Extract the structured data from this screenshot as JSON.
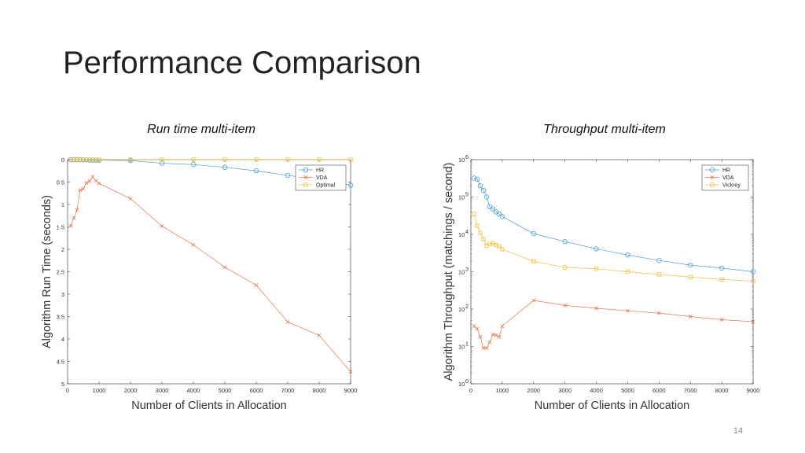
{
  "slide": {
    "title": "Performance Comparison",
    "page_number": "14"
  },
  "colors": {
    "series1": "#4d9fd1",
    "series2": "#e07a52",
    "series3": "#e8c14a",
    "axis": "#262626"
  },
  "chart_data": [
    {
      "type": "line",
      "caption": "Run time multi-item",
      "xlabel": "Number of Clients in Allocation",
      "ylabel": "Algorithm Run Time (seconds)",
      "xlim": [
        0,
        9000
      ],
      "ylim": [
        0,
        5
      ],
      "y_reversed": true,
      "x_ticks": [
        0,
        1000,
        2000,
        3000,
        4000,
        5000,
        6000,
        7000,
        8000,
        9000
      ],
      "x_tick_labels": [
        "0",
        "1000",
        "2000",
        "3000",
        "4000",
        "5000",
        "6000",
        "7000",
        "8000",
        "9000"
      ],
      "y_ticks": [
        0,
        0.5,
        1,
        1.5,
        2,
        2.5,
        3,
        3.5,
        4,
        4.5,
        5
      ],
      "y_tick_labels": [
        "0",
        "0.5",
        "1",
        "1.5",
        "2",
        "2.5",
        "3",
        "3.5",
        "4",
        "4.5",
        "5"
      ],
      "grid": false,
      "legend_position": "top-right",
      "series": [
        {
          "name": "HR",
          "color": "#4d9fd1",
          "marker": "circle",
          "x": [
            100,
            200,
            300,
            400,
            500,
            600,
            700,
            800,
            900,
            1000,
            2000,
            3000,
            4000,
            5000,
            6000,
            7000,
            8000,
            9000
          ],
          "y": [
            0.0,
            0.0,
            0.0,
            0.0,
            0.005,
            0.005,
            0.01,
            0.01,
            0.01,
            0.01,
            0.02,
            0.08,
            0.11,
            0.17,
            0.25,
            0.35,
            0.45,
            0.57
          ]
        },
        {
          "name": "VDA",
          "color": "#e07a52",
          "marker": "x",
          "x": [
            100,
            200,
            300,
            400,
            500,
            600,
            700,
            800,
            900,
            1000,
            2000,
            3000,
            4000,
            5000,
            6000,
            7000,
            8000,
            9000
          ],
          "y": [
            1.48,
            1.3,
            1.12,
            0.68,
            0.65,
            0.52,
            0.48,
            0.38,
            0.47,
            0.53,
            0.87,
            1.48,
            1.9,
            2.4,
            2.8,
            3.62,
            3.92,
            4.73
          ]
        },
        {
          "name": "Optimal",
          "color": "#e8c14a",
          "marker": "square",
          "x": [
            100,
            200,
            300,
            400,
            500,
            600,
            700,
            800,
            900,
            1000,
            2000,
            3000,
            4000,
            5000,
            6000,
            7000,
            8000,
            9000
          ],
          "y": [
            0.0,
            0.0,
            0.0,
            0.0,
            0.0,
            0.0,
            0.0,
            0.0,
            0.0,
            0.0,
            0.0,
            0.0,
            0.0,
            0.0,
            0.0,
            0.0,
            0.0,
            0.0
          ]
        }
      ]
    },
    {
      "type": "line",
      "caption": "Throughput multi-item",
      "xlabel": "Number of Clients in Allocation",
      "ylabel": "Algorithm Throughput (matchings / second)",
      "xlim": [
        0,
        9000
      ],
      "ylim": [
        1,
        1000000
      ],
      "y_scale": "log",
      "x_ticks": [
        0,
        1000,
        2000,
        3000,
        4000,
        5000,
        6000,
        7000,
        8000,
        9000
      ],
      "x_tick_labels": [
        "0",
        "1000",
        "2000",
        "3000",
        "4000",
        "5000",
        "6000",
        "7000",
        "8000",
        "9000"
      ],
      "y_ticks": [
        1,
        10,
        100,
        1000,
        10000,
        100000,
        1000000
      ],
      "y_tick_labels": [
        {
          "base": "10",
          "exp": "0"
        },
        {
          "base": "10",
          "exp": "1"
        },
        {
          "base": "10",
          "exp": "2"
        },
        {
          "base": "10",
          "exp": "3"
        },
        {
          "base": "10",
          "exp": "4"
        },
        {
          "base": "10",
          "exp": "5"
        },
        {
          "base": "10",
          "exp": "6"
        }
      ],
      "grid": false,
      "legend_position": "top-right",
      "series": [
        {
          "name": "HR",
          "color": "#4d9fd1",
          "marker": "circle",
          "x": [
            100,
            200,
            300,
            400,
            500,
            600,
            700,
            800,
            900,
            1000,
            2000,
            3000,
            4000,
            5000,
            6000,
            7000,
            8000,
            9000
          ],
          "y": [
            320000,
            300000,
            200000,
            150000,
            100000,
            55000,
            48000,
            40000,
            35000,
            30000,
            10500,
            6400,
            4100,
            2800,
            2000,
            1500,
            1250,
            1000
          ]
        },
        {
          "name": "VDA",
          "color": "#e07a52",
          "marker": "x",
          "x": [
            100,
            200,
            300,
            400,
            500,
            600,
            700,
            800,
            900,
            1000,
            2000,
            3000,
            4000,
            5000,
            6000,
            7000,
            8000,
            9000
          ],
          "y": [
            35,
            30,
            18,
            9,
            9,
            13,
            21,
            20,
            18,
            35,
            170,
            125,
            105,
            90,
            78,
            63,
            52,
            46
          ]
        },
        {
          "name": "Vickrey",
          "color": "#e8c14a",
          "marker": "square",
          "x": [
            100,
            200,
            300,
            400,
            500,
            600,
            700,
            800,
            900,
            1000,
            2000,
            3000,
            4000,
            5000,
            6000,
            7000,
            8000,
            9000
          ],
          "y": [
            35000,
            17000,
            11000,
            7500,
            5000,
            5500,
            5800,
            5200,
            4800,
            4000,
            1900,
            1300,
            1200,
            1000,
            850,
            720,
            620,
            560
          ]
        }
      ]
    }
  ]
}
